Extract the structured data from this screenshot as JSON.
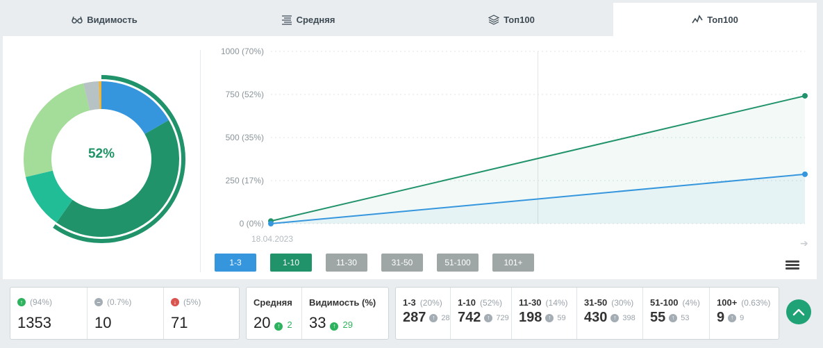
{
  "tabs": [
    {
      "label": "Видимость",
      "icon": "glasses-icon",
      "active": false
    },
    {
      "label": "Средняя",
      "icon": "lines-icon",
      "active": false
    },
    {
      "label": "Топ100",
      "icon": "layers-icon",
      "active": false
    },
    {
      "label": "Топ100",
      "icon": "chart-line-icon",
      "active": true
    }
  ],
  "donut": {
    "center_label": "52%",
    "segments": [
      {
        "value": 287,
        "color": "#3596de"
      },
      {
        "value": 742,
        "color": "#21936a"
      },
      {
        "value": 198,
        "color": "#21bd97"
      },
      {
        "value": 430,
        "color": "#a4dc99"
      },
      {
        "value": 55,
        "color": "#b6c2c4"
      },
      {
        "value": 9,
        "color": "#f3b431"
      }
    ],
    "highlight_ring_color": "#21936a"
  },
  "chart_data": {
    "type": "area",
    "x": [
      "18.04.2023",
      ""
    ],
    "y_ticks": [
      "1000 (70%)",
      "750 (52%)",
      "500 (35%)",
      "250 (17%)",
      "0 (0%)"
    ],
    "ylim": [
      0,
      1000
    ],
    "series": [
      {
        "values": [
          15,
          742
        ],
        "color": "#21936a"
      },
      {
        "values": [
          0,
          287
        ],
        "color": "#3596de"
      }
    ],
    "grid": true
  },
  "range_buttons": [
    {
      "label": "1-3",
      "color": "#3596de"
    },
    {
      "label": "1-10",
      "color": "#21936a"
    },
    {
      "label": "11-30",
      "color": "#9ea7a6"
    },
    {
      "label": "31-50",
      "color": "#9ea7a6"
    },
    {
      "label": "51-100",
      "color": "#9ea7a6"
    },
    {
      "label": "101+",
      "color": "#9ea7a6"
    }
  ],
  "stats_trend": {
    "up": {
      "pct": "(94%)",
      "value": "1353"
    },
    "same": {
      "pct": "(0.7%)",
      "value": "10"
    },
    "down": {
      "pct": "(5%)",
      "value": "71"
    }
  },
  "stats_avg": {
    "avg": {
      "label": "Средняя",
      "value": "20",
      "delta": "2"
    },
    "vis": {
      "label": "Видимость (%)",
      "value": "33",
      "delta": "29"
    }
  },
  "stats_ranges": [
    {
      "label": "1-3",
      "pct": "(20%)",
      "value": "287",
      "delta": "28"
    },
    {
      "label": "1-10",
      "pct": "(52%)",
      "value": "742",
      "delta": "729"
    },
    {
      "label": "11-30",
      "pct": "(14%)",
      "value": "198",
      "delta": "59"
    },
    {
      "label": "31-50",
      "pct": "(30%)",
      "value": "430",
      "delta": "398"
    },
    {
      "label": "51-100",
      "pct": "(4%)",
      "value": "55",
      "delta": "53"
    },
    {
      "label": "100+",
      "pct": "(0.63%)",
      "value": "9",
      "delta": "9"
    }
  ]
}
